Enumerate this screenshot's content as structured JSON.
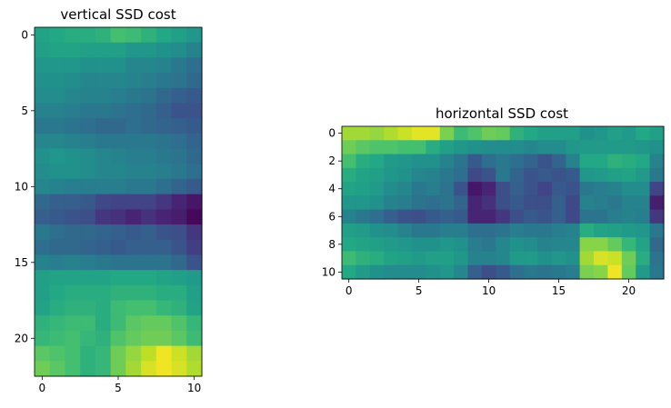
{
  "chart_data": [
    {
      "type": "heatmap",
      "title": "vertical SSD cost",
      "colormap": "viridis",
      "rows": 23,
      "cols": 11,
      "xticks": [
        0,
        5,
        10
      ],
      "yticks": [
        0,
        5,
        10,
        15,
        20
      ],
      "xlim": [
        -0.5,
        10.5
      ],
      "ylim": [
        22.5,
        -0.5
      ],
      "values": [
        [
          0.58,
          0.6,
          0.62,
          0.62,
          0.64,
          0.7,
          0.68,
          0.64,
          0.6,
          0.56,
          0.52
        ],
        [
          0.56,
          0.58,
          0.58,
          0.56,
          0.56,
          0.56,
          0.52,
          0.52,
          0.5,
          0.48,
          0.44
        ],
        [
          0.52,
          0.52,
          0.52,
          0.5,
          0.5,
          0.5,
          0.46,
          0.46,
          0.44,
          0.4,
          0.36
        ],
        [
          0.5,
          0.5,
          0.48,
          0.46,
          0.46,
          0.46,
          0.44,
          0.42,
          0.4,
          0.38,
          0.34
        ],
        [
          0.48,
          0.48,
          0.46,
          0.44,
          0.44,
          0.42,
          0.4,
          0.38,
          0.34,
          0.3,
          0.28
        ],
        [
          0.44,
          0.44,
          0.42,
          0.4,
          0.4,
          0.38,
          0.36,
          0.34,
          0.3,
          0.26,
          0.26
        ],
        [
          0.4,
          0.4,
          0.38,
          0.36,
          0.34,
          0.34,
          0.36,
          0.34,
          0.32,
          0.3,
          0.28
        ],
        [
          0.46,
          0.46,
          0.44,
          0.42,
          0.4,
          0.4,
          0.4,
          0.4,
          0.38,
          0.36,
          0.32
        ],
        [
          0.5,
          0.52,
          0.5,
          0.48,
          0.46,
          0.44,
          0.42,
          0.42,
          0.4,
          0.38,
          0.34
        ],
        [
          0.48,
          0.5,
          0.5,
          0.48,
          0.46,
          0.46,
          0.44,
          0.44,
          0.42,
          0.4,
          0.36
        ],
        [
          0.46,
          0.44,
          0.42,
          0.42,
          0.42,
          0.42,
          0.4,
          0.4,
          0.36,
          0.32,
          0.28
        ],
        [
          0.34,
          0.3,
          0.3,
          0.28,
          0.22,
          0.2,
          0.2,
          0.2,
          0.16,
          0.1,
          0.06
        ],
        [
          0.3,
          0.28,
          0.26,
          0.24,
          0.16,
          0.14,
          0.1,
          0.14,
          0.1,
          0.08,
          0.02
        ],
        [
          0.4,
          0.36,
          0.34,
          0.34,
          0.32,
          0.3,
          0.28,
          0.3,
          0.26,
          0.24,
          0.16
        ],
        [
          0.36,
          0.34,
          0.34,
          0.32,
          0.3,
          0.28,
          0.3,
          0.3,
          0.3,
          0.26,
          0.18
        ],
        [
          0.44,
          0.42,
          0.44,
          0.42,
          0.4,
          0.38,
          0.38,
          0.38,
          0.38,
          0.34,
          0.26
        ],
        [
          0.56,
          0.58,
          0.58,
          0.58,
          0.58,
          0.6,
          0.6,
          0.6,
          0.58,
          0.56,
          0.54
        ],
        [
          0.56,
          0.6,
          0.62,
          0.62,
          0.62,
          0.64,
          0.64,
          0.64,
          0.62,
          0.62,
          0.56
        ],
        [
          0.58,
          0.62,
          0.64,
          0.64,
          0.62,
          0.68,
          0.7,
          0.7,
          0.66,
          0.64,
          0.58
        ],
        [
          0.64,
          0.66,
          0.68,
          0.68,
          0.62,
          0.68,
          0.74,
          0.76,
          0.76,
          0.72,
          0.66
        ],
        [
          0.66,
          0.68,
          0.7,
          0.66,
          0.64,
          0.72,
          0.76,
          0.78,
          0.78,
          0.74,
          0.68
        ],
        [
          0.74,
          0.72,
          0.7,
          0.64,
          0.66,
          0.78,
          0.84,
          0.9,
          0.98,
          0.92,
          0.86
        ],
        [
          0.78,
          0.74,
          0.7,
          0.64,
          0.66,
          0.78,
          0.86,
          0.94,
          0.98,
          0.94,
          0.88
        ]
      ]
    },
    {
      "type": "heatmap",
      "title": "horizontal SSD cost",
      "colormap": "viridis",
      "rows": 11,
      "cols": 23,
      "xticks": [
        0,
        5,
        10,
        15,
        20
      ],
      "yticks": [
        0,
        2,
        4,
        6,
        8,
        10
      ],
      "xlim": [
        -0.5,
        22.5
      ],
      "ylim": [
        10.5,
        -0.5
      ],
      "values": [
        [
          0.86,
          0.86,
          0.84,
          0.88,
          0.92,
          0.96,
          0.96,
          0.8,
          0.68,
          0.72,
          0.78,
          0.76,
          0.64,
          0.6,
          0.56,
          0.56,
          0.56,
          0.5,
          0.52,
          0.56,
          0.54,
          0.6,
          0.56
        ],
        [
          0.78,
          0.74,
          0.72,
          0.72,
          0.7,
          0.7,
          0.62,
          0.56,
          0.52,
          0.5,
          0.48,
          0.48,
          0.48,
          0.46,
          0.48,
          0.48,
          0.52,
          0.54,
          0.54,
          0.54,
          0.54,
          0.52,
          0.5
        ],
        [
          0.7,
          0.62,
          0.6,
          0.54,
          0.52,
          0.5,
          0.5,
          0.44,
          0.38,
          0.28,
          0.36,
          0.4,
          0.36,
          0.32,
          0.26,
          0.32,
          0.44,
          0.6,
          0.6,
          0.64,
          0.62,
          0.6,
          0.44
        ],
        [
          0.62,
          0.58,
          0.56,
          0.52,
          0.5,
          0.46,
          0.44,
          0.4,
          0.36,
          0.22,
          0.26,
          0.4,
          0.32,
          0.26,
          0.28,
          0.26,
          0.28,
          0.52,
          0.54,
          0.56,
          0.58,
          0.54,
          0.4
        ],
        [
          0.58,
          0.56,
          0.54,
          0.48,
          0.46,
          0.4,
          0.42,
          0.38,
          0.26,
          0.06,
          0.1,
          0.24,
          0.3,
          0.26,
          0.2,
          0.28,
          0.26,
          0.4,
          0.42,
          0.44,
          0.48,
          0.48,
          0.2
        ],
        [
          0.52,
          0.52,
          0.5,
          0.44,
          0.42,
          0.38,
          0.36,
          0.38,
          0.32,
          0.1,
          0.14,
          0.24,
          0.28,
          0.24,
          0.24,
          0.3,
          0.22,
          0.44,
          0.42,
          0.4,
          0.44,
          0.44,
          0.08
        ],
        [
          0.44,
          0.4,
          0.36,
          0.3,
          0.26,
          0.24,
          0.28,
          0.3,
          0.28,
          0.1,
          0.1,
          0.16,
          0.24,
          0.28,
          0.26,
          0.3,
          0.22,
          0.38,
          0.38,
          0.42,
          0.44,
          0.42,
          0.16
        ],
        [
          0.56,
          0.54,
          0.5,
          0.48,
          0.44,
          0.4,
          0.4,
          0.42,
          0.42,
          0.36,
          0.36,
          0.38,
          0.42,
          0.4,
          0.4,
          0.42,
          0.44,
          0.62,
          0.58,
          0.56,
          0.54,
          0.52,
          0.4
        ],
        [
          0.6,
          0.58,
          0.56,
          0.54,
          0.52,
          0.5,
          0.5,
          0.52,
          0.5,
          0.42,
          0.4,
          0.46,
          0.5,
          0.48,
          0.44,
          0.46,
          0.46,
          0.82,
          0.82,
          0.76,
          0.66,
          0.58,
          0.34
        ],
        [
          0.68,
          0.64,
          0.62,
          0.58,
          0.56,
          0.54,
          0.56,
          0.56,
          0.52,
          0.44,
          0.44,
          0.46,
          0.54,
          0.54,
          0.5,
          0.52,
          0.5,
          0.86,
          0.94,
          0.92,
          0.78,
          0.62,
          0.38
        ],
        [
          0.6,
          0.54,
          0.5,
          0.48,
          0.48,
          0.48,
          0.5,
          0.52,
          0.46,
          0.3,
          0.24,
          0.28,
          0.36,
          0.4,
          0.38,
          0.4,
          0.42,
          0.8,
          0.82,
          0.98,
          0.76,
          0.54,
          0.4
        ]
      ]
    }
  ]
}
